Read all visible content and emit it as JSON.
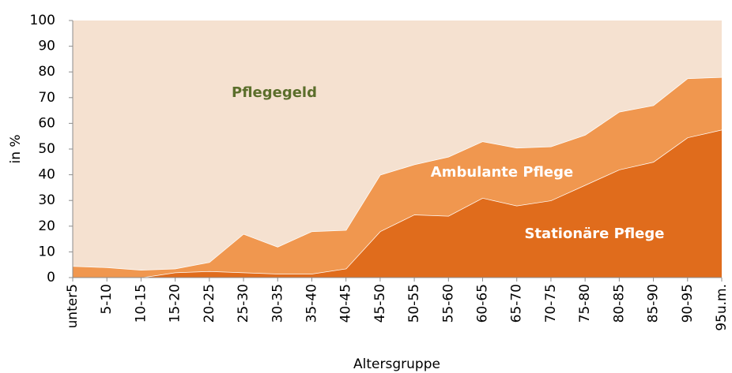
{
  "chart_data": {
    "type": "stacked-area",
    "xlabel": "Altersgruppe",
    "ylabel": "in %",
    "categories": [
      "unter5",
      "5-10",
      "10-15",
      "15-20",
      "20-25",
      "25-30",
      "30-35",
      "35-40",
      "40-45",
      "45-50",
      "50-55",
      "55-60",
      "60-65",
      "65-70",
      "70-75",
      "75-80",
      "80-85",
      "85-90",
      "90-95",
      "95u.m."
    ],
    "series": [
      {
        "name": "Stationäre Pflege",
        "color": "#e06c1c",
        "label_color": "#ffffff",
        "values": [
          0,
          0,
          0,
          2,
          2.5,
          2,
          1.5,
          1.5,
          3.5,
          18,
          24.5,
          24,
          31,
          28,
          30,
          36,
          42,
          45,
          54.5,
          57.5
        ]
      },
      {
        "name": "Ambulante Pflege",
        "color": "#f0974f",
        "label_color": "#ffffff",
        "values": [
          4.5,
          4,
          3,
          1.5,
          3.5,
          15,
          10.5,
          16.5,
          15,
          22,
          19.5,
          23,
          22,
          22.5,
          21,
          19.5,
          22.5,
          22,
          23,
          20.5
        ]
      },
      {
        "name": "Pflegegeld",
        "color": "#f5e1d0",
        "label_color": "#5b6e2b",
        "values": [
          95.5,
          96,
          97,
          96.5,
          94,
          83,
          88,
          82,
          81.5,
          60,
          56,
          53,
          47,
          49.5,
          49,
          44.5,
          35.5,
          33,
          22.5,
          22
        ]
      }
    ],
    "ylim": [
      0,
      100
    ],
    "yticks": [
      0,
      10,
      20,
      30,
      40,
      50,
      60,
      70,
      80,
      90,
      100
    ],
    "grid": false
  }
}
